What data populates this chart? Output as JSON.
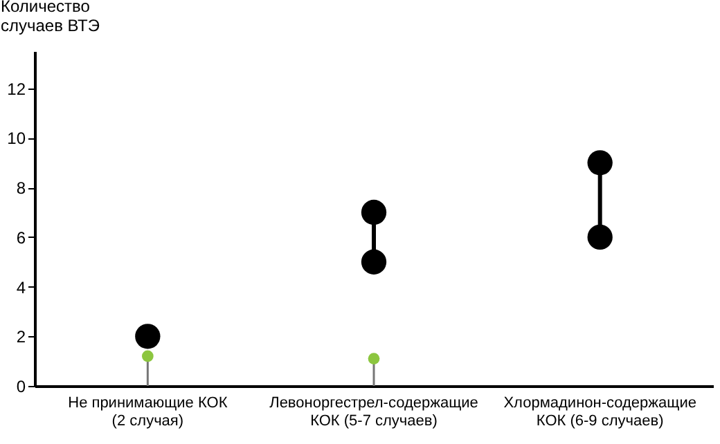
{
  "chart_data": {
    "type": "scatter",
    "ylabel": "Количество случаев ВТЭ",
    "categories": [
      "Не принимающие КОК\n(2 случая)",
      "Левоноргестрел-содержащие\nКОК (5-7 случаев)",
      "Хлормадинон-содержащие\nКОК (6-9 случаев)"
    ],
    "series": [
      {
        "color": "#000000",
        "values": [
          2,
          5,
          6
        ]
      },
      {
        "color": "#000000",
        "values": [
          null,
          7,
          9
        ]
      },
      {
        "type": "lollipop",
        "color": "#8cc63f",
        "values": [
          1.2,
          1.1,
          null
        ]
      }
    ],
    "ylim": [
      0,
      13.5
    ],
    "yticks": [
      0,
      2,
      4,
      6,
      8,
      10,
      12
    ],
    "grid": false,
    "marker": "circle"
  }
}
